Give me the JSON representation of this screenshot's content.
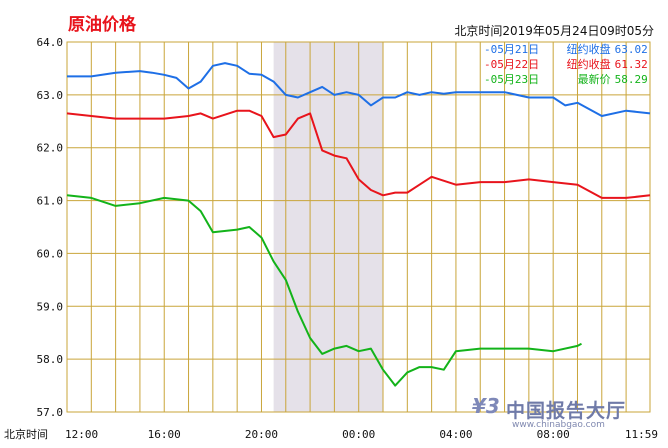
{
  "title": "原油价格",
  "timestamp": "北京时间2019年05月24日09时05分",
  "x_axis_title": "北京时间",
  "legend": [
    {
      "label": "05月21日",
      "key": "纽约收盘",
      "value": "63.02",
      "color": "#1e6fe6"
    },
    {
      "label": "05月22日",
      "key": "纽约收盘",
      "value": "61.32",
      "color": "#e8141c"
    },
    {
      "label": "05月23日",
      "key": "最新价",
      "value": "58.29",
      "color": "#13b31a"
    }
  ],
  "watermark": {
    "cn": "中国报告大厅",
    "url": "www.chinabgao.com"
  },
  "colors": {
    "grid": "#c9a53a",
    "shade": "#e5e1e9",
    "axis_text": "#111111"
  },
  "chart_data": {
    "type": "line",
    "title": "原油价格",
    "xlabel": "北京时间",
    "ylabel": "",
    "ylim": [
      57.0,
      64.0
    ],
    "yticks": [
      "57.0",
      "58.0",
      "59.0",
      "60.0",
      "61.0",
      "62.0",
      "63.0",
      "64.0"
    ],
    "xticks": [
      "12:00",
      "16:00",
      "20:00",
      "00:00",
      "04:00",
      "08:00",
      "11:59"
    ],
    "shaded_band": {
      "from": "20:30",
      "to": "01:00"
    },
    "grid": true,
    "legend_position": "top-right",
    "series": [
      {
        "name": "05月21日",
        "color": "#1e6fe6",
        "x": [
          "12:00",
          "13:00",
          "14:00",
          "15:00",
          "15:30",
          "16:00",
          "16:30",
          "17:00",
          "17:30",
          "18:00",
          "18:30",
          "19:00",
          "19:30",
          "20:00",
          "20:30",
          "21:00",
          "21:30",
          "22:00",
          "22:30",
          "23:00",
          "23:30",
          "00:00",
          "00:30",
          "01:00",
          "01:30",
          "02:00",
          "02:30",
          "03:00",
          "03:30",
          "04:00",
          "05:00",
          "06:00",
          "07:00",
          "08:00",
          "08:30",
          "09:00",
          "10:00",
          "11:00",
          "11:59"
        ],
        "y": [
          63.35,
          63.35,
          63.42,
          63.45,
          63.42,
          63.38,
          63.32,
          63.12,
          63.25,
          63.55,
          63.6,
          63.55,
          63.4,
          63.38,
          63.25,
          63.0,
          62.95,
          63.05,
          63.15,
          63.0,
          63.05,
          63.0,
          62.8,
          62.95,
          62.95,
          63.05,
          63.0,
          63.05,
          63.02,
          63.05,
          63.05,
          63.05,
          62.95,
          62.95,
          62.8,
          62.85,
          62.6,
          62.7,
          62.65
        ]
      },
      {
        "name": "05月22日",
        "color": "#e8141c",
        "x": [
          "12:00",
          "13:00",
          "14:00",
          "15:00",
          "16:00",
          "17:00",
          "17:30",
          "18:00",
          "19:00",
          "19:30",
          "20:00",
          "20:30",
          "21:00",
          "21:30",
          "22:00",
          "22:30",
          "23:00",
          "23:30",
          "00:00",
          "00:30",
          "01:00",
          "01:30",
          "02:00",
          "02:30",
          "03:00",
          "04:00",
          "05:00",
          "06:00",
          "07:00",
          "08:00",
          "09:00",
          "10:00",
          "11:00",
          "11:59"
        ],
        "y": [
          62.65,
          62.6,
          62.55,
          62.55,
          62.55,
          62.6,
          62.65,
          62.55,
          62.7,
          62.7,
          62.6,
          62.2,
          62.25,
          62.55,
          62.65,
          61.95,
          61.85,
          61.8,
          61.4,
          61.2,
          61.1,
          61.15,
          61.15,
          61.3,
          61.45,
          61.3,
          61.35,
          61.35,
          61.4,
          61.35,
          61.3,
          61.05,
          61.05,
          61.1
        ]
      },
      {
        "name": "05月23日",
        "color": "#13b31a",
        "x": [
          "12:00",
          "13:00",
          "14:00",
          "15:00",
          "16:00",
          "17:00",
          "17:30",
          "18:00",
          "19:00",
          "19:30",
          "20:00",
          "20:30",
          "21:00",
          "21:30",
          "22:00",
          "22:30",
          "23:00",
          "23:30",
          "00:00",
          "00:30",
          "01:00",
          "01:30",
          "02:00",
          "02:30",
          "03:00",
          "03:30",
          "04:00",
          "05:00",
          "06:00",
          "07:00",
          "08:00",
          "09:00",
          "09:10"
        ],
        "y": [
          61.1,
          61.05,
          60.9,
          60.95,
          61.05,
          61.0,
          60.8,
          60.4,
          60.45,
          60.5,
          60.3,
          59.85,
          59.5,
          58.9,
          58.4,
          58.1,
          58.2,
          58.25,
          58.15,
          58.2,
          57.8,
          57.5,
          57.75,
          57.85,
          57.85,
          57.8,
          58.15,
          58.2,
          58.2,
          58.2,
          58.15,
          58.25,
          58.29
        ]
      }
    ]
  }
}
